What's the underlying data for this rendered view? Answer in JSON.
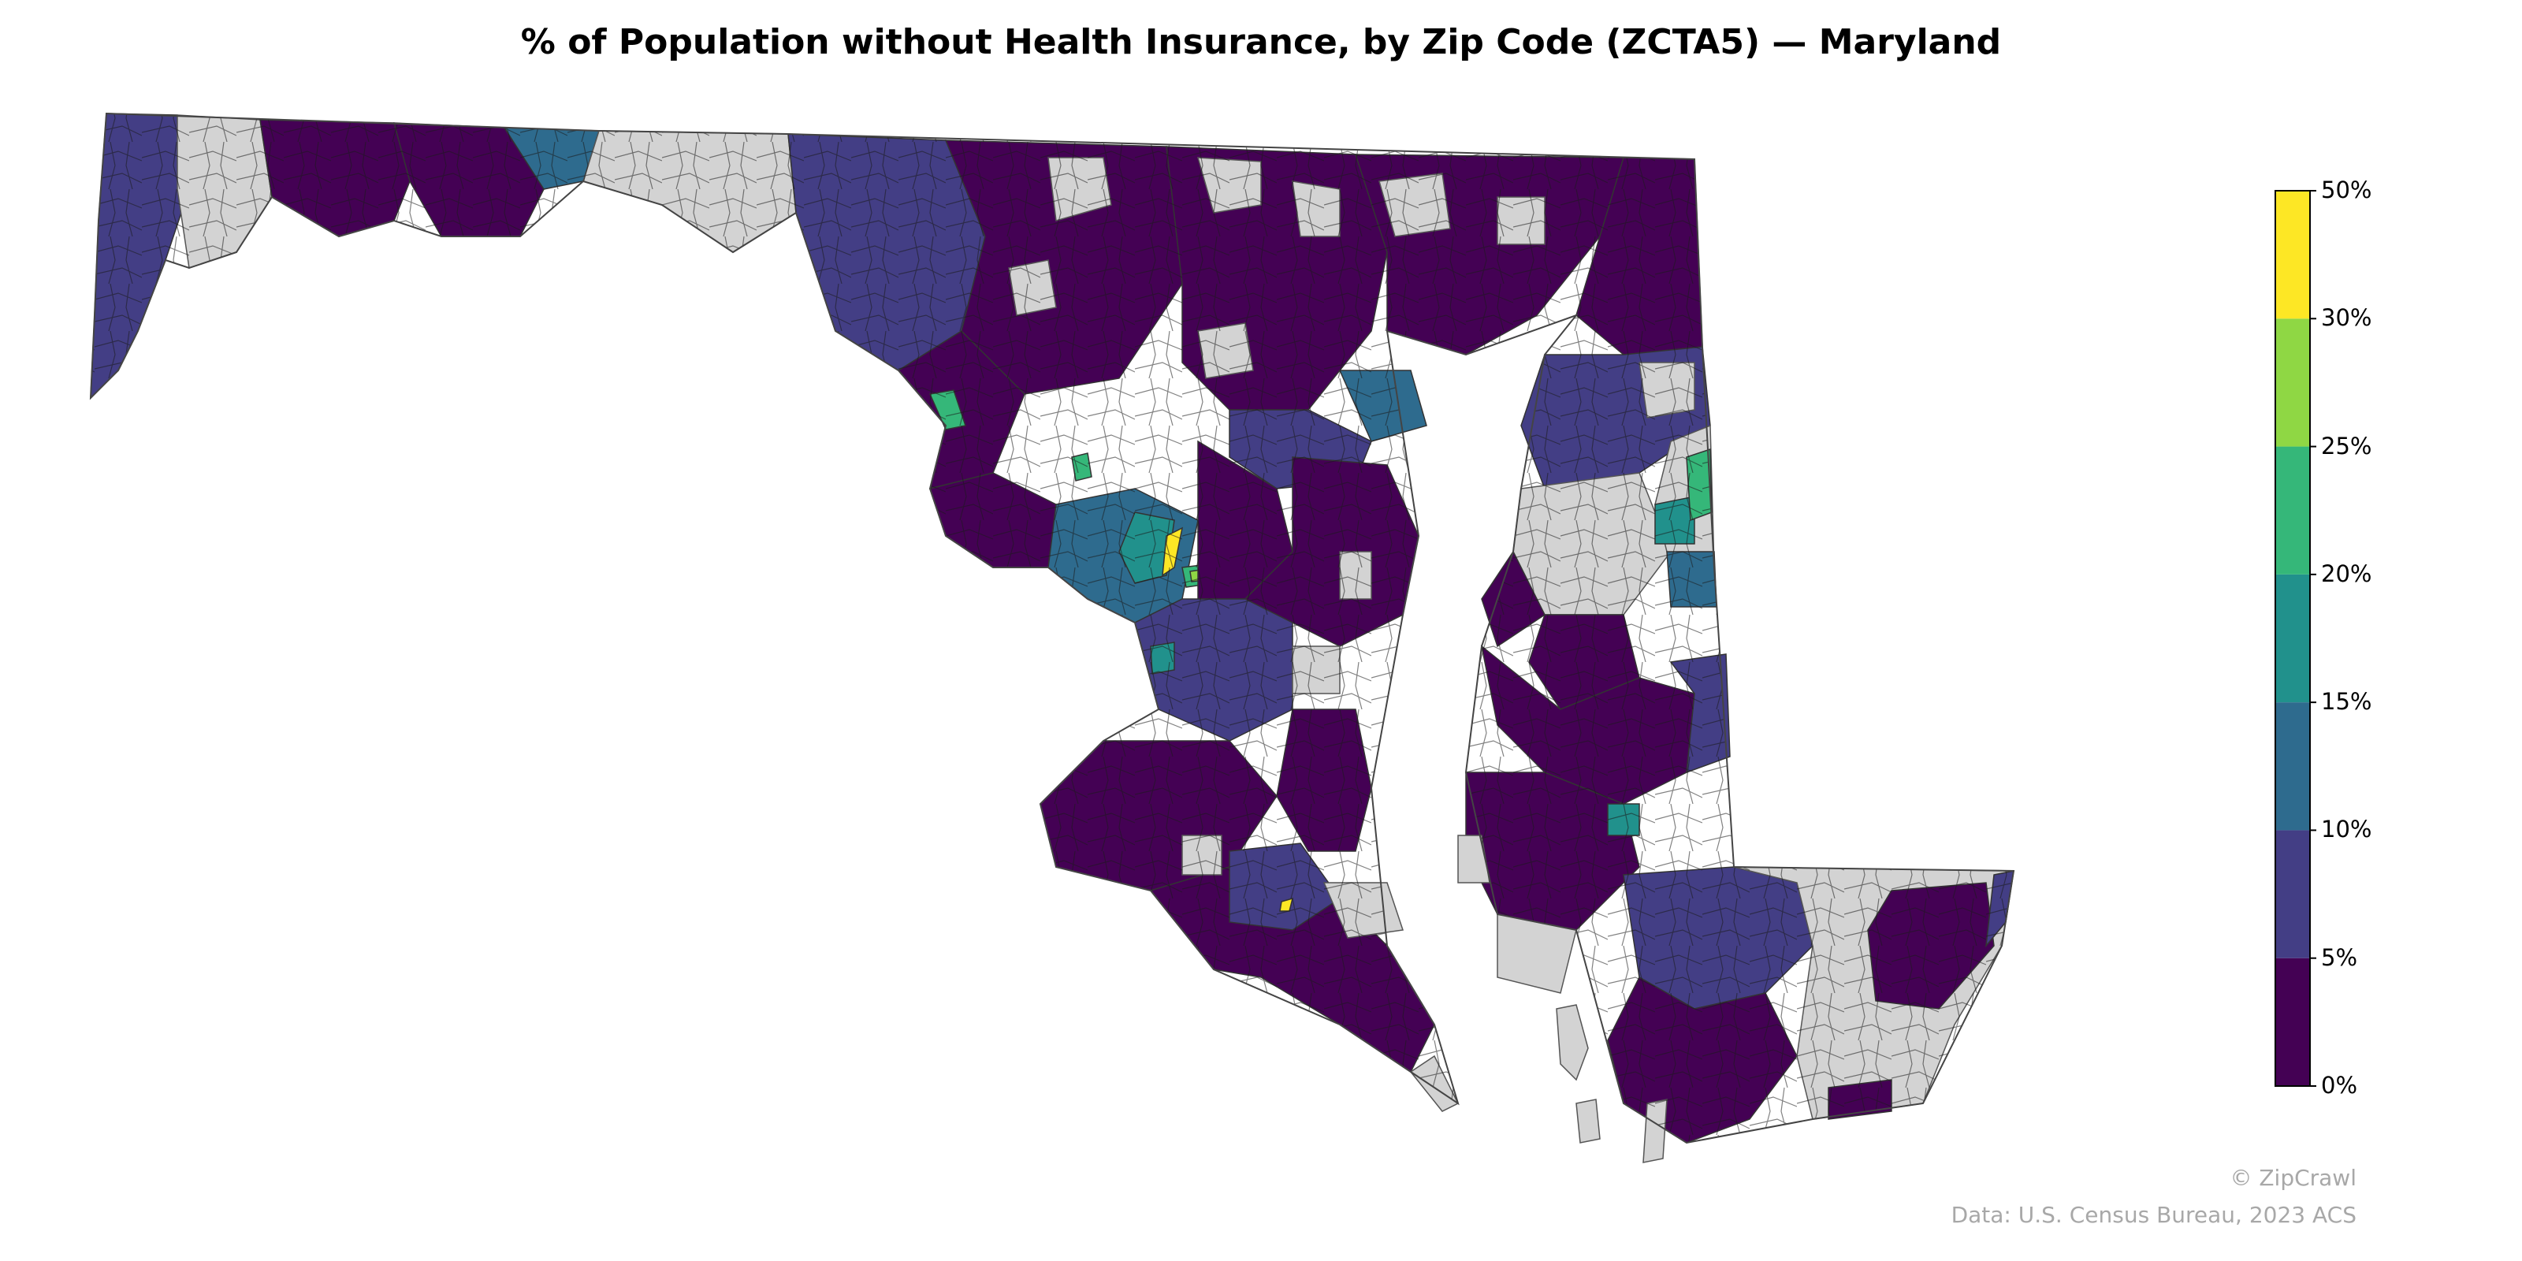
{
  "title": "% of Population without Health Insurance, by Zip Code (ZCTA5) — Maryland",
  "legend": {
    "bins": [
      {
        "from": "0%",
        "to": "5%",
        "color": "#440154"
      },
      {
        "from": "5%",
        "to": "10%",
        "color": "#433e85"
      },
      {
        "from": "10%",
        "to": "15%",
        "color": "#2e6b8e"
      },
      {
        "from": "15%",
        "to": "20%",
        "color": "#21918c"
      },
      {
        "from": "20%",
        "to": "25%",
        "color": "#35b779"
      },
      {
        "from": "25%",
        "to": "30%",
        "color": "#8fd744"
      },
      {
        "from": "30%",
        "to": "50%",
        "color": "#fde725"
      }
    ],
    "tick_labels": [
      "0%",
      "5%",
      "10%",
      "15%",
      "20%",
      "25%",
      "30%",
      "50%"
    ]
  },
  "no_data_color": "#d3d3d3",
  "credit": "© ZipCrawl",
  "source": "Data: U.S. Census Bureau, 2023 ACS"
}
